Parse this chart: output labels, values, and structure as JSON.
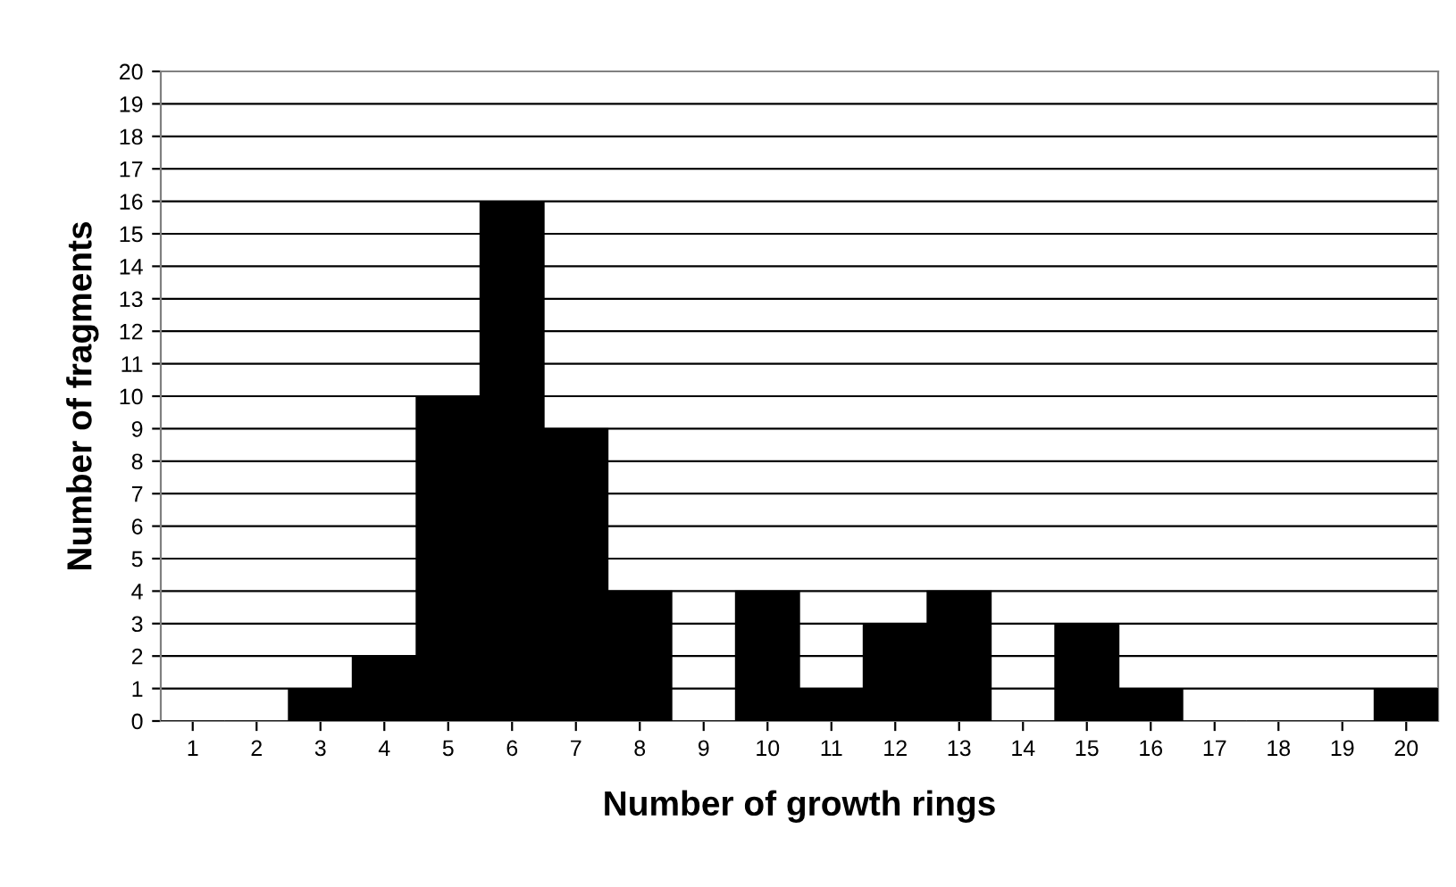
{
  "chart_data": {
    "type": "bar",
    "xlabel": "Number of growth rings",
    "ylabel": "Number of fragments",
    "categories": [
      "1",
      "2",
      "3",
      "4",
      "5",
      "6",
      "7",
      "8",
      "9",
      "10",
      "11",
      "12",
      "13",
      "14",
      "15",
      "16",
      "17",
      "18",
      "19",
      "20"
    ],
    "values": [
      0,
      0,
      1,
      2,
      10,
      16,
      9,
      4,
      0,
      4,
      1,
      3,
      4,
      0,
      3,
      1,
      0,
      0,
      0,
      1
    ],
    "color": "#000000",
    "ylim": [
      0,
      20
    ],
    "yticks": [
      0,
      1,
      2,
      3,
      4,
      5,
      6,
      7,
      8,
      9,
      10,
      11,
      12,
      13,
      14,
      15,
      16,
      17,
      18,
      19,
      20
    ],
    "grid": "y"
  }
}
